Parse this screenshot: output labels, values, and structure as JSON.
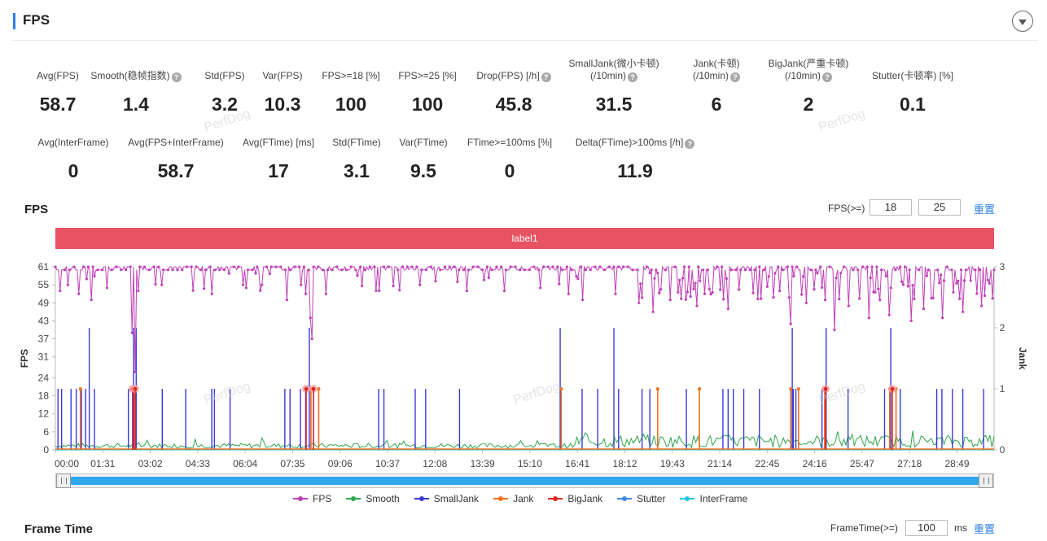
{
  "section": {
    "title": "FPS"
  },
  "stats_row1": [
    {
      "label": "Avg(FPS)",
      "value": "58.7",
      "help": false
    },
    {
      "label": "Smooth(稳帧指数)",
      "value": "1.4",
      "help": true
    },
    {
      "label": "Std(FPS)",
      "value": "3.2",
      "help": false
    },
    {
      "label": "Var(FPS)",
      "value": "10.3",
      "help": false
    },
    {
      "label": "FPS>=18 [%]",
      "value": "100",
      "help": false
    },
    {
      "label": "FPS>=25 [%]",
      "value": "100",
      "help": false
    },
    {
      "label": "Drop(FPS) [/h]",
      "value": "45.8",
      "help": true
    },
    {
      "label": "SmallJank(微小卡顿)",
      "label2": "(/10min)",
      "value": "31.5",
      "help": true
    },
    {
      "label": "Jank(卡顿)",
      "label2": "(/10min)",
      "value": "6",
      "help": true
    },
    {
      "label": "BigJank(严重卡顿)",
      "label2": "(/10min)",
      "value": "2",
      "help": true
    },
    {
      "label": "Stutter(卡顿率) [%]",
      "value": "0.1",
      "help": false
    }
  ],
  "stats_row2": [
    {
      "label": "Avg(InterFrame)",
      "value": "0",
      "help": false
    },
    {
      "label": "Avg(FPS+InterFrame)",
      "value": "58.7",
      "help": false
    },
    {
      "label": "Avg(FTime) [ms]",
      "value": "17",
      "help": false
    },
    {
      "label": "Std(FTime)",
      "value": "3.1",
      "help": false
    },
    {
      "label": "Var(FTime)",
      "value": "9.5",
      "help": false
    },
    {
      "label": "FTime>=100ms [%]",
      "value": "0",
      "help": false
    },
    {
      "label": "Delta(FTime)>100ms [/h]",
      "value": "11.9",
      "help": true
    }
  ],
  "watermark": "PerfDog",
  "fps_panel": {
    "title": "FPS",
    "threshold_label": "FPS(>=)",
    "threshold1": "18",
    "threshold2": "25",
    "reset": "重置",
    "band_label": "label1"
  },
  "frame_time_panel": {
    "title": "Frame Time",
    "threshold_label": "FrameTime(>=)",
    "threshold": "100",
    "unit": "ms",
    "reset": "重置"
  },
  "chart_data": {
    "type": "line",
    "ylabel": "FPS",
    "y2label": "Jank",
    "ylim": [
      0,
      61
    ],
    "y2lim": [
      0,
      3
    ],
    "yticks": [
      "0",
      "6",
      "12",
      "18",
      "24",
      "31",
      "37",
      "43",
      "49",
      "55",
      "61"
    ],
    "y2ticks": [
      "0",
      "1",
      "2",
      "3"
    ],
    "xticks": [
      "00:00",
      "01:31",
      "03:02",
      "04:33",
      "06:04",
      "07:35",
      "09:06",
      "10:37",
      "12:08",
      "13:39",
      "15:10",
      "16:41",
      "18:12",
      "19:43",
      "21:14",
      "22:45",
      "24:16",
      "25:47",
      "27:18",
      "28:49"
    ],
    "xlim_seconds": [
      0,
      1800
    ],
    "fps_baseline": 60,
    "fps_dips": [
      {
        "t": 10,
        "v": 53
      },
      {
        "t": 25,
        "v": 55
      },
      {
        "t": 45,
        "v": 52
      },
      {
        "t": 70,
        "v": 50
      },
      {
        "t": 100,
        "v": 54
      },
      {
        "t": 148,
        "v": 39
      },
      {
        "t": 152,
        "v": 26
      },
      {
        "t": 160,
        "v": 53
      },
      {
        "t": 205,
        "v": 55
      },
      {
        "t": 300,
        "v": 52
      },
      {
        "t": 395,
        "v": 55
      },
      {
        "t": 445,
        "v": 50
      },
      {
        "t": 470,
        "v": 55
      },
      {
        "t": 480,
        "v": 52
      },
      {
        "t": 490,
        "v": 44
      },
      {
        "t": 492,
        "v": 37
      },
      {
        "t": 520,
        "v": 52
      },
      {
        "t": 620,
        "v": 53
      },
      {
        "t": 700,
        "v": 55
      },
      {
        "t": 790,
        "v": 53
      },
      {
        "t": 860,
        "v": 53
      },
      {
        "t": 930,
        "v": 54
      },
      {
        "t": 985,
        "v": 52
      },
      {
        "t": 1010,
        "v": 50
      },
      {
        "t": 1075,
        "v": 52
      },
      {
        "t": 1120,
        "v": 49
      },
      {
        "t": 1145,
        "v": 46
      },
      {
        "t": 1180,
        "v": 50
      },
      {
        "t": 1230,
        "v": 48
      },
      {
        "t": 1245,
        "v": 52
      },
      {
        "t": 1290,
        "v": 47
      },
      {
        "t": 1410,
        "v": 42
      },
      {
        "t": 1440,
        "v": 49
      },
      {
        "t": 1475,
        "v": 50
      },
      {
        "t": 1495,
        "v": 40
      },
      {
        "t": 1520,
        "v": 48
      },
      {
        "t": 1560,
        "v": 44
      },
      {
        "t": 1580,
        "v": 50
      },
      {
        "t": 1600,
        "v": 45
      },
      {
        "t": 1640,
        "v": 43
      },
      {
        "t": 1665,
        "v": 47
      },
      {
        "t": 1700,
        "v": 44
      },
      {
        "t": 1740,
        "v": 46
      },
      {
        "t": 1775,
        "v": 48
      }
    ],
    "small_jank_times": [
      5,
      12,
      30,
      40,
      50,
      58,
      75,
      140,
      152,
      205,
      250,
      300,
      305,
      335,
      440,
      450,
      470,
      480,
      490,
      495,
      620,
      630,
      690,
      710,
      775,
      970,
      1010,
      1040,
      1080,
      1125,
      1140,
      1210,
      1280,
      1290,
      1300,
      1320,
      1350,
      1410,
      1413,
      1415,
      1420,
      1470,
      1520,
      1590,
      1600,
      1620,
      1690,
      1700,
      1720,
      1740,
      1780
    ],
    "small_jank_tall_times": [
      65,
      150,
      155,
      487,
      968,
      1071,
      1413,
      1478,
      1602
    ],
    "jank_times": [
      48,
      152,
      490,
      505,
      970,
      1155,
      1235,
      1410,
      1425,
      1475,
      1600,
      1612
    ],
    "big_jank_times": [
      148,
      153,
      481,
      495,
      1477,
      1605
    ],
    "series": [
      {
        "name": "FPS",
        "color": "#c040b8"
      },
      {
        "name": "Smooth",
        "color": "#2ea64a"
      },
      {
        "name": "SmallJank",
        "color": "#3a3ad8"
      },
      {
        "name": "Jank",
        "color": "#f07020"
      },
      {
        "name": "BigJank",
        "color": "#e02020"
      },
      {
        "name": "Stutter",
        "color": "#3a8ae8"
      },
      {
        "name": "InterFrame",
        "color": "#22c8d8"
      }
    ]
  }
}
